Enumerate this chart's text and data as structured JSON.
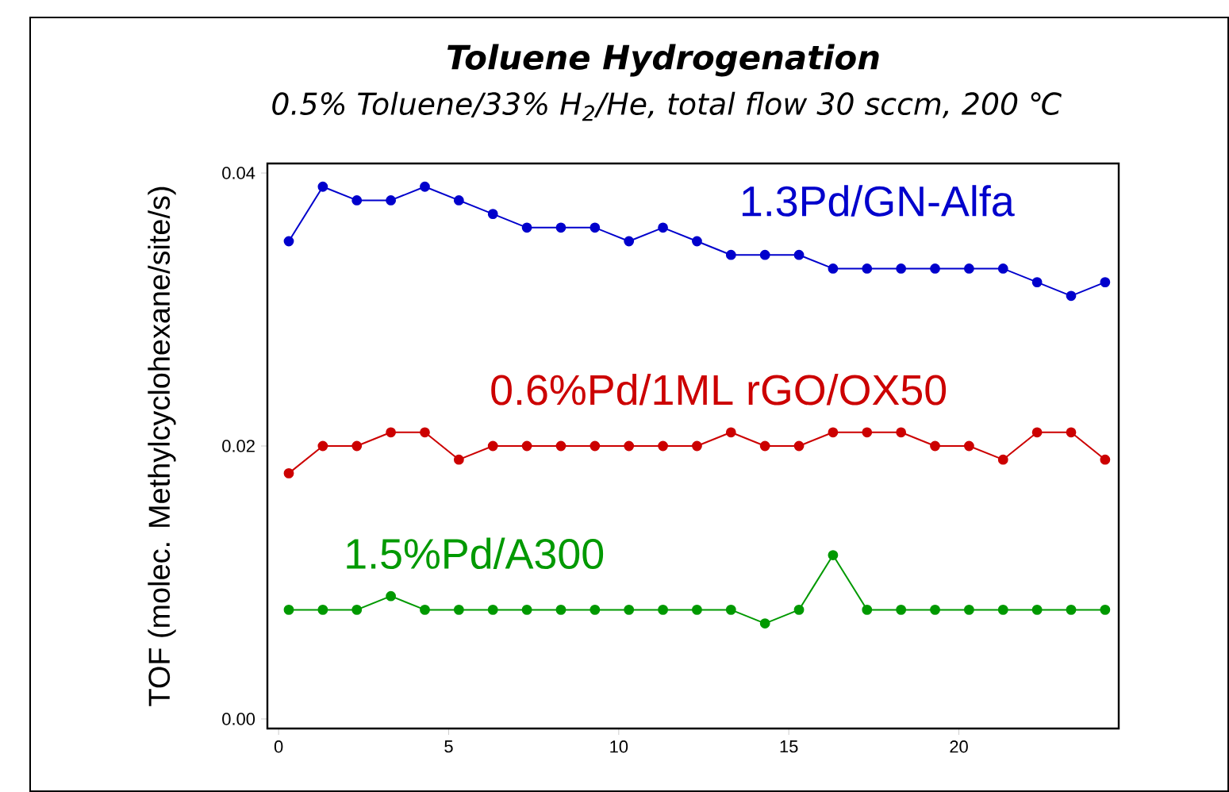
{
  "chart_data": {
    "type": "line",
    "title": "Toluene Hydrogenation",
    "subtitle": "0.5% Toluene/33% H$_{2}$/He, total flow 30 sccm, 200 ℃",
    "ylabel": "TOF (molec. Methylcyclohexane/site/s)",
    "x": [
      0.3,
      1.3,
      2.3,
      3.3,
      4.3,
      5.3,
      6.3,
      7.3,
      8.3,
      9.3,
      10.3,
      11.3,
      12.3,
      13.3,
      14.3,
      15.3,
      16.3,
      17.3,
      18.3,
      19.3,
      20.3,
      21.3,
      22.3,
      23.3,
      24.3
    ],
    "series": [
      {
        "name": "1.3Pd/GN-Alfa",
        "color": "#0000cc",
        "values": [
          0.035,
          0.039,
          0.038,
          0.038,
          0.039,
          0.038,
          0.037,
          0.036,
          0.036,
          0.036,
          0.035,
          0.036,
          0.035,
          0.034,
          0.034,
          0.034,
          0.033,
          0.033,
          0.033,
          0.033,
          0.033,
          0.033,
          0.032,
          0.031,
          0.032
        ]
      },
      {
        "name": "0.6%Pd/1ML rGO/OX50",
        "color": "#cc0000",
        "values": [
          0.018,
          0.02,
          0.02,
          0.021,
          0.021,
          0.019,
          0.02,
          0.02,
          0.02,
          0.02,
          0.02,
          0.02,
          0.02,
          0.021,
          0.02,
          0.02,
          0.021,
          0.021,
          0.021,
          0.02,
          0.02,
          0.019,
          0.021,
          0.021,
          0.019
        ]
      },
      {
        "name": "1.5%Pd/A300",
        "color": "#009900",
        "values": [
          0.008,
          0.008,
          0.008,
          0.009,
          0.008,
          0.008,
          0.008,
          0.008,
          0.008,
          0.008,
          0.008,
          0.008,
          0.008,
          0.008,
          0.007,
          0.008,
          0.012,
          0.008,
          0.008,
          0.008,
          0.008,
          0.008,
          0.008,
          0.008,
          0.008
        ]
      }
    ],
    "xlim": [
      -0.33,
      24.7
    ],
    "ylim": [
      -0.0007,
      0.0407
    ],
    "xticks": [
      0,
      5,
      10,
      15,
      20
    ],
    "yticks": [
      {
        "value": 0.0,
        "label": "0.00"
      },
      {
        "value": 0.02,
        "label": "0.02"
      },
      {
        "value": 0.04,
        "label": "0.04"
      }
    ],
    "marker": "circle",
    "line_style": "solid",
    "grid": false,
    "legend": false
  }
}
